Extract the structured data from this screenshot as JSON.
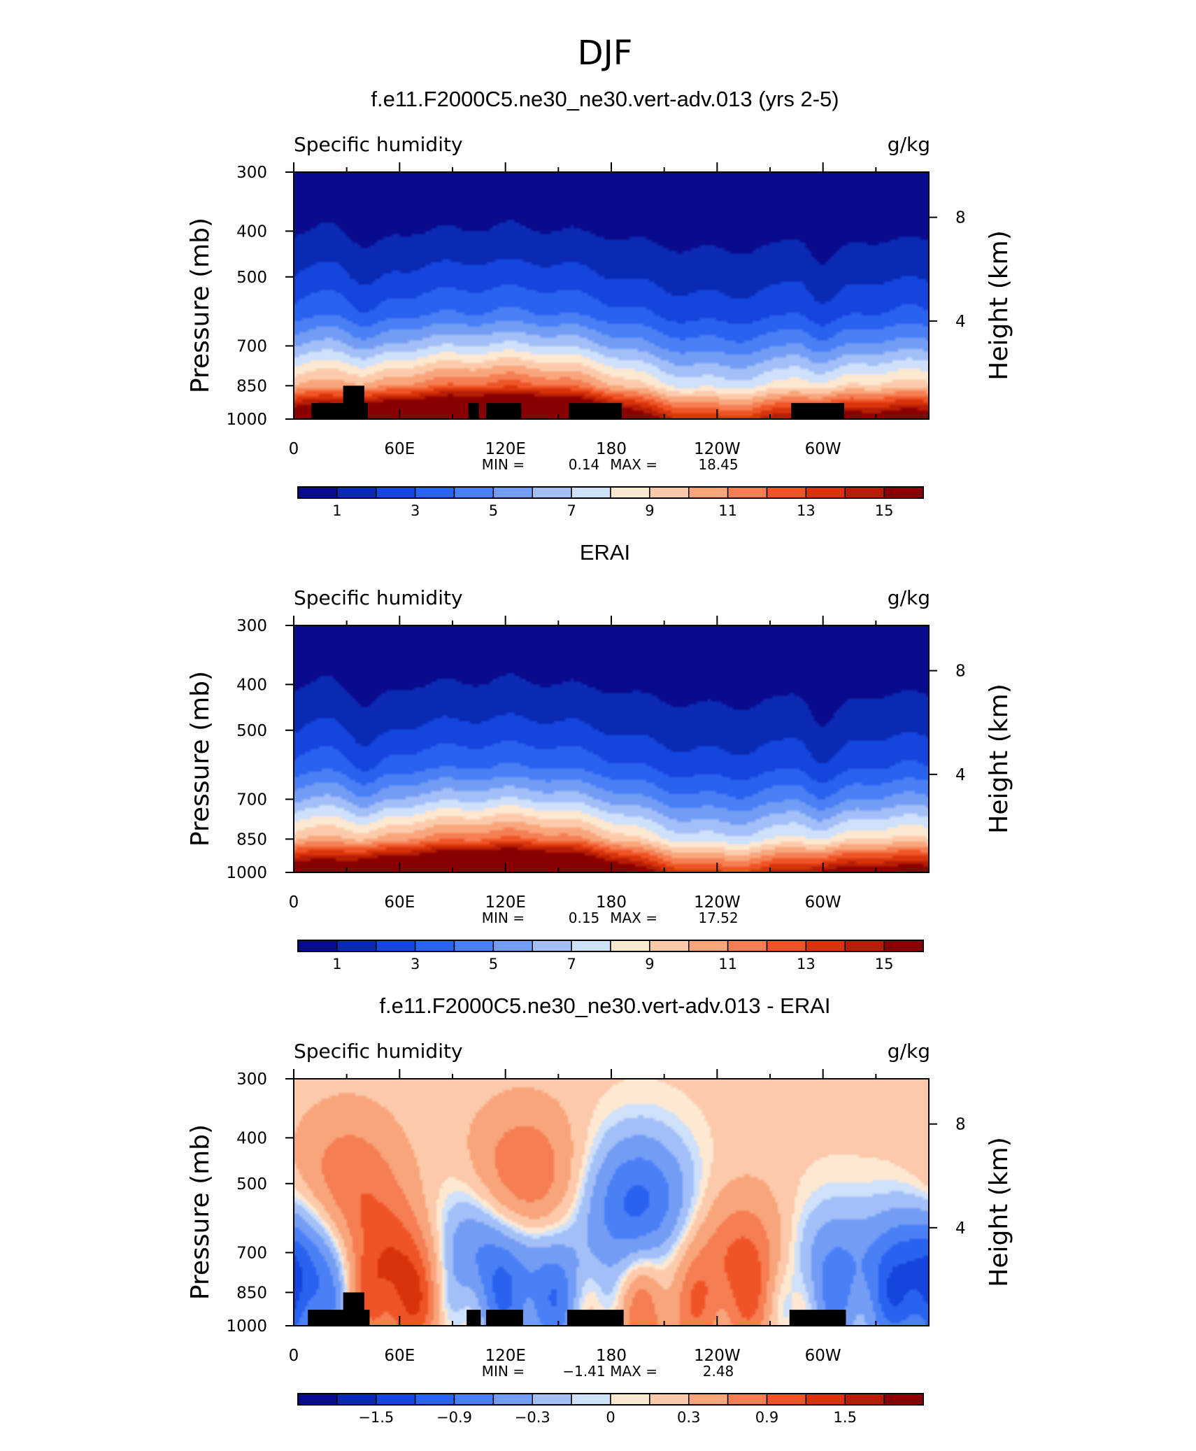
{
  "figure_title": "DJF",
  "colors": {
    "humidity_palette": [
      "#0a0a8c",
      "#0a2ab4",
      "#1445dc",
      "#2a62f0",
      "#4a80f5",
      "#739df5",
      "#a3bff7",
      "#cfe0fb",
      "#fde8d2",
      "#fccaaa",
      "#f9a57c",
      "#f57e52",
      "#ef5426",
      "#d8330c",
      "#b61d05",
      "#8a0000"
    ],
    "difference_palette": [
      "#0a0a8c",
      "#0a2ab4",
      "#1445dc",
      "#2a62f0",
      "#4a80f5",
      "#739df5",
      "#a3bff7",
      "#cfe0fb",
      "#fde8d2",
      "#fccaaa",
      "#f9a57c",
      "#f57e52",
      "#ef5426",
      "#d8330c",
      "#b61d05",
      "#8a0000"
    ],
    "terrain_mask": "#000000"
  },
  "chart_data": [
    {
      "type": "heatmap",
      "title": "f.e11.F2000C5.ne30_ne30.vert-adv.013 (yrs 2-5)",
      "left_string": "Specific humidity",
      "right_string": "g/kg",
      "ylabel": "Pressure (mb)",
      "y2label": "Height (km)",
      "x_ticks": [
        "0",
        "60E",
        "120E",
        "180",
        "120W",
        "60W"
      ],
      "y_ticks": [
        "300",
        "400",
        "500",
        "700",
        "850",
        "1000"
      ],
      "y2_ticks": [
        "8",
        "4"
      ],
      "xlim": [
        0,
        360
      ],
      "ylim": [
        1000,
        300
      ],
      "min_label": "MIN =",
      "min_value": "0.14",
      "max_label": "MAX =",
      "max_value": "18.45",
      "colorbar_labels": [
        "1",
        "3",
        "5",
        "7",
        "9",
        "11",
        "13",
        "15"
      ],
      "contour_levels": [
        0,
        1,
        2,
        3,
        4,
        5,
        6,
        7,
        8,
        9,
        10,
        11,
        12,
        13,
        14,
        15,
        16
      ],
      "mean_profile": [
        [
          1000,
          17.0
        ],
        [
          925,
          13.5
        ],
        [
          850,
          9.5
        ],
        [
          700,
          5.5
        ],
        [
          600,
          3.2
        ],
        [
          500,
          1.9
        ],
        [
          400,
          0.8
        ],
        [
          300,
          0.3
        ]
      ],
      "terrain_blocks": [
        {
          "lon": [
            10,
            42
          ],
          "top_hPa": 925
        },
        {
          "lon": [
            28,
            40
          ],
          "top_hPa": 850
        },
        {
          "lon": [
            99,
            105
          ],
          "top_hPa": 925
        },
        {
          "lon": [
            109,
            129
          ],
          "top_hPa": 925
        },
        {
          "lon": [
            156,
            186
          ],
          "top_hPa": 925
        },
        {
          "lon": [
            282,
            312
          ],
          "top_hPa": 925
        }
      ]
    },
    {
      "type": "heatmap",
      "title": "ERAI",
      "left_string": "Specific humidity",
      "right_string": "g/kg",
      "ylabel": "Pressure (mb)",
      "y2label": "Height (km)",
      "x_ticks": [
        "0",
        "60E",
        "120E",
        "180",
        "120W",
        "60W"
      ],
      "y_ticks": [
        "300",
        "400",
        "500",
        "700",
        "850",
        "1000"
      ],
      "y2_ticks": [
        "8",
        "4"
      ],
      "xlim": [
        0,
        360
      ],
      "ylim": [
        1000,
        300
      ],
      "min_label": "MIN =",
      "min_value": "0.15",
      "max_label": "MAX =",
      "max_value": "17.52",
      "colorbar_labels": [
        "1",
        "3",
        "5",
        "7",
        "9",
        "11",
        "13",
        "15"
      ],
      "contour_levels": [
        0,
        1,
        2,
        3,
        4,
        5,
        6,
        7,
        8,
        9,
        10,
        11,
        12,
        13,
        14,
        15,
        16
      ],
      "mean_profile": [
        [
          1000,
          16.5
        ],
        [
          925,
          13.0
        ],
        [
          850,
          9.2
        ],
        [
          700,
          5.3
        ],
        [
          600,
          3.1
        ],
        [
          500,
          1.8
        ],
        [
          400,
          0.8
        ],
        [
          300,
          0.3
        ]
      ],
      "terrain_blocks": []
    },
    {
      "type": "heatmap",
      "title": "f.e11.F2000C5.ne30_ne30.vert-adv.013 - ERAI",
      "left_string": "Specific humidity",
      "right_string": "g/kg",
      "ylabel": "Pressure (mb)",
      "y2label": "Height (km)",
      "x_ticks": [
        "0",
        "60E",
        "120E",
        "180",
        "120W",
        "60W"
      ],
      "y_ticks": [
        "300",
        "400",
        "500",
        "700",
        "850",
        "1000"
      ],
      "y2_ticks": [
        "8",
        "4"
      ],
      "xlim": [
        0,
        360
      ],
      "ylim": [
        1000,
        300
      ],
      "min_label": "MIN =",
      "min_value": "−1.41",
      "max_label": "MAX =",
      "max_value": "2.48",
      "colorbar_labels": [
        "−1.5",
        "−0.9",
        "−0.3",
        "0",
        "0.3",
        "0.9",
        "1.5"
      ],
      "contour_levels": [
        -2.1,
        -1.8,
        -1.5,
        -1.2,
        -0.9,
        -0.6,
        -0.3,
        -0.1,
        0,
        0.1,
        0.3,
        0.6,
        0.9,
        1.2,
        1.5,
        1.8,
        2.1
      ],
      "difference_features": [
        {
          "lon": 130,
          "p": 500,
          "value": 0.9
        },
        {
          "lon": 30,
          "p": 500,
          "value": 0.7
        },
        {
          "lon": 60,
          "p": 800,
          "value": 1.4
        },
        {
          "lon": 100,
          "p": 700,
          "value": -1.0
        },
        {
          "lon": 140,
          "p": 850,
          "value": -0.9
        },
        {
          "lon": 195,
          "p": 560,
          "value": -1.2
        },
        {
          "lon": 255,
          "p": 760,
          "value": 1.0
        },
        {
          "lon": 300,
          "p": 780,
          "value": -0.8
        },
        {
          "lon": 355,
          "p": 800,
          "value": -0.9
        },
        {
          "lon": 5,
          "p": 800,
          "value": -0.8
        },
        {
          "lon": 200,
          "p": 920,
          "value": 0.6
        }
      ],
      "terrain_blocks": [
        {
          "lon": [
            8,
            43
          ],
          "top_hPa": 925
        },
        {
          "lon": [
            28,
            40
          ],
          "top_hPa": 850
        },
        {
          "lon": [
            98,
            106
          ],
          "top_hPa": 925
        },
        {
          "lon": [
            109,
            130
          ],
          "top_hPa": 925
        },
        {
          "lon": [
            155,
            187
          ],
          "top_hPa": 925
        },
        {
          "lon": [
            281,
            313
          ],
          "top_hPa": 925
        }
      ]
    }
  ]
}
